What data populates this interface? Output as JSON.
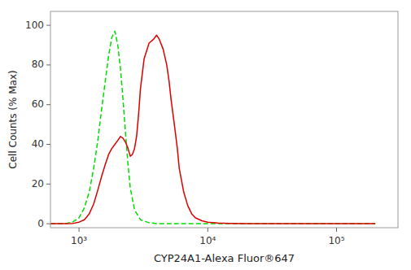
{
  "chart_data": {
    "type": "line",
    "xlabel": "CYP24A1-Alexa Fluor®647",
    "ylabel": "Cell Counts (% Max)",
    "log": "x",
    "grid": false,
    "xlim": [
      600,
      300000
    ],
    "ylim": [
      -2,
      107
    ],
    "xticks": [
      {
        "value": 1000,
        "label": "10³"
      },
      {
        "value": 10000,
        "label": "10⁴"
      },
      {
        "value": 100000,
        "label": "10⁵"
      }
    ],
    "yticks": [
      0,
      20,
      40,
      60,
      80,
      100
    ],
    "series": [
      {
        "color": "#00dd00",
        "line_style": "dashed",
        "x": [
          600,
          700,
          800,
          900,
          1000,
          1100,
          1200,
          1300,
          1400,
          1500,
          1600,
          1700,
          1800,
          1900,
          2000,
          2100,
          2200,
          2300,
          2400,
          2500,
          2700,
          3000,
          3500,
          4000,
          5000,
          7000,
          10000,
          20000,
          50000,
          100000,
          200000
        ],
        "values": [
          0,
          0,
          0.2,
          1,
          3,
          8,
          16,
          28,
          42,
          58,
          72,
          85,
          94,
          97,
          90,
          78,
          62,
          45,
          30,
          18,
          7,
          2,
          0.5,
          0.1,
          0,
          0,
          0,
          0,
          0,
          0,
          0
        ]
      },
      {
        "color": "#dd0000",
        "line_style": "solid",
        "x": [
          600,
          700,
          800,
          900,
          1000,
          1100,
          1200,
          1300,
          1400,
          1500,
          1600,
          1700,
          1800,
          1900,
          2000,
          2100,
          2200,
          2300,
          2400,
          2500,
          2600,
          2700,
          2800,
          2900,
          3000,
          3200,
          3500,
          3800,
          4000,
          4200,
          4500,
          4800,
          5000,
          5200,
          5500,
          5800,
          6000,
          6500,
          7000,
          7500,
          8000,
          9000,
          10000,
          12000,
          15000,
          20000,
          30000,
          50000,
          100000,
          200000
        ],
        "values": [
          0,
          0,
          0,
          0.2,
          0.8,
          2,
          5,
          10,
          17,
          24,
          30,
          35,
          38,
          40,
          42,
          44,
          43,
          41,
          38,
          34,
          35,
          38,
          44,
          55,
          68,
          83,
          91,
          93,
          95,
          93,
          88,
          80,
          72,
          62,
          50,
          38,
          28,
          16,
          9,
          5,
          3,
          1.5,
          0.8,
          0.4,
          0.2,
          0.1,
          0,
          0,
          0,
          0
        ]
      }
    ]
  }
}
